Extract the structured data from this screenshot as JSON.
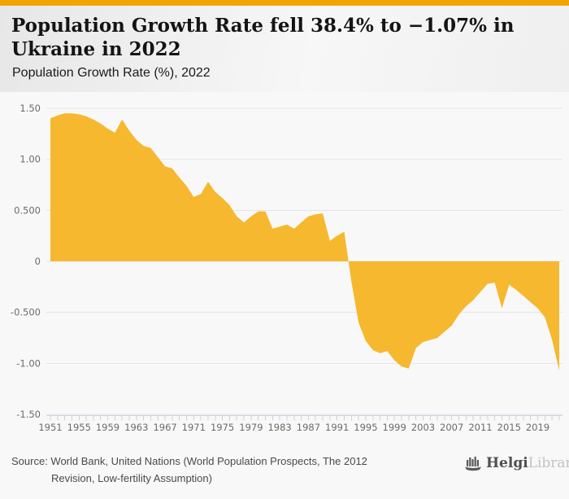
{
  "header": {
    "title_line1": "Population Growth Rate fell 38.4% to −1.07% in",
    "title_line2": "Ukraine in 2022",
    "subtitle": "Population Growth Rate (%), 2022"
  },
  "footer": {
    "source_line1": "Source: World Bank, United Nations (World Population Prospects, The 2012",
    "source_line2": "Revision, Low-fertility Assumption)",
    "logo_text_primary": "Helgi",
    "logo_text_secondary": "Library."
  },
  "colors": {
    "accent_bar": "#F0A502",
    "area_fill": "#F6B82E",
    "page_bg": "#F8F8F8",
    "gridline": "#E6E6E6",
    "axis_line": "#C8D3E1",
    "axis_text": "#6B6B6B"
  },
  "chart_data": {
    "type": "area",
    "title": "Population Growth Rate (%), 2022",
    "xlabel": "",
    "ylabel": "Population Growth Rate (%)",
    "ylim": [
      -1.5,
      1.5
    ],
    "grid": true,
    "legend": false,
    "fill_color": "#F6B82E",
    "ytick_values": [
      1.5,
      1.0,
      0.5,
      0,
      -0.5,
      -1.0,
      -1.5
    ],
    "ytick_labels": [
      "1.50",
      "1.00",
      "0.500",
      "0",
      "-0.500",
      "-1.00",
      "-1.50"
    ],
    "xtick_labels": [
      "1951",
      "1955",
      "1959",
      "1963",
      "1967",
      "1971",
      "1975",
      "1979",
      "1983",
      "1987",
      "1991",
      "1995",
      "1999",
      "2003",
      "2007",
      "2011",
      "2015",
      "2019"
    ],
    "years": [
      1951,
      1952,
      1953,
      1954,
      1955,
      1956,
      1957,
      1958,
      1959,
      1960,
      1961,
      1962,
      1963,
      1964,
      1965,
      1966,
      1967,
      1968,
      1969,
      1970,
      1971,
      1972,
      1973,
      1974,
      1975,
      1976,
      1977,
      1978,
      1979,
      1980,
      1981,
      1982,
      1983,
      1984,
      1985,
      1986,
      1987,
      1988,
      1989,
      1990,
      1991,
      1992,
      1993,
      1994,
      1995,
      1996,
      1997,
      1998,
      1999,
      2000,
      2001,
      2002,
      2003,
      2004,
      2005,
      2006,
      2007,
      2008,
      2009,
      2010,
      2011,
      2012,
      2013,
      2014,
      2015,
      2016,
      2017,
      2018,
      2019,
      2020,
      2021,
      2022
    ],
    "values": [
      1.4,
      1.43,
      1.45,
      1.45,
      1.44,
      1.42,
      1.39,
      1.35,
      1.3,
      1.26,
      1.39,
      1.28,
      1.19,
      1.13,
      1.11,
      1.02,
      0.93,
      0.91,
      0.82,
      0.74,
      0.63,
      0.66,
      0.78,
      0.68,
      0.62,
      0.55,
      0.44,
      0.38,
      0.44,
      0.49,
      0.49,
      0.32,
      0.34,
      0.36,
      0.32,
      0.38,
      0.44,
      0.46,
      0.47,
      0.2,
      0.25,
      0.29,
      -0.2,
      -0.6,
      -0.78,
      -0.87,
      -0.9,
      -0.88,
      -0.97,
      -1.03,
      -1.05,
      -0.85,
      -0.79,
      -0.77,
      -0.75,
      -0.69,
      -0.63,
      -0.52,
      -0.44,
      -0.38,
      -0.3,
      -0.22,
      -0.21,
      -0.46,
      -0.23,
      -0.28,
      -0.34,
      -0.4,
      -0.46,
      -0.55,
      -0.77,
      -1.07
    ]
  }
}
